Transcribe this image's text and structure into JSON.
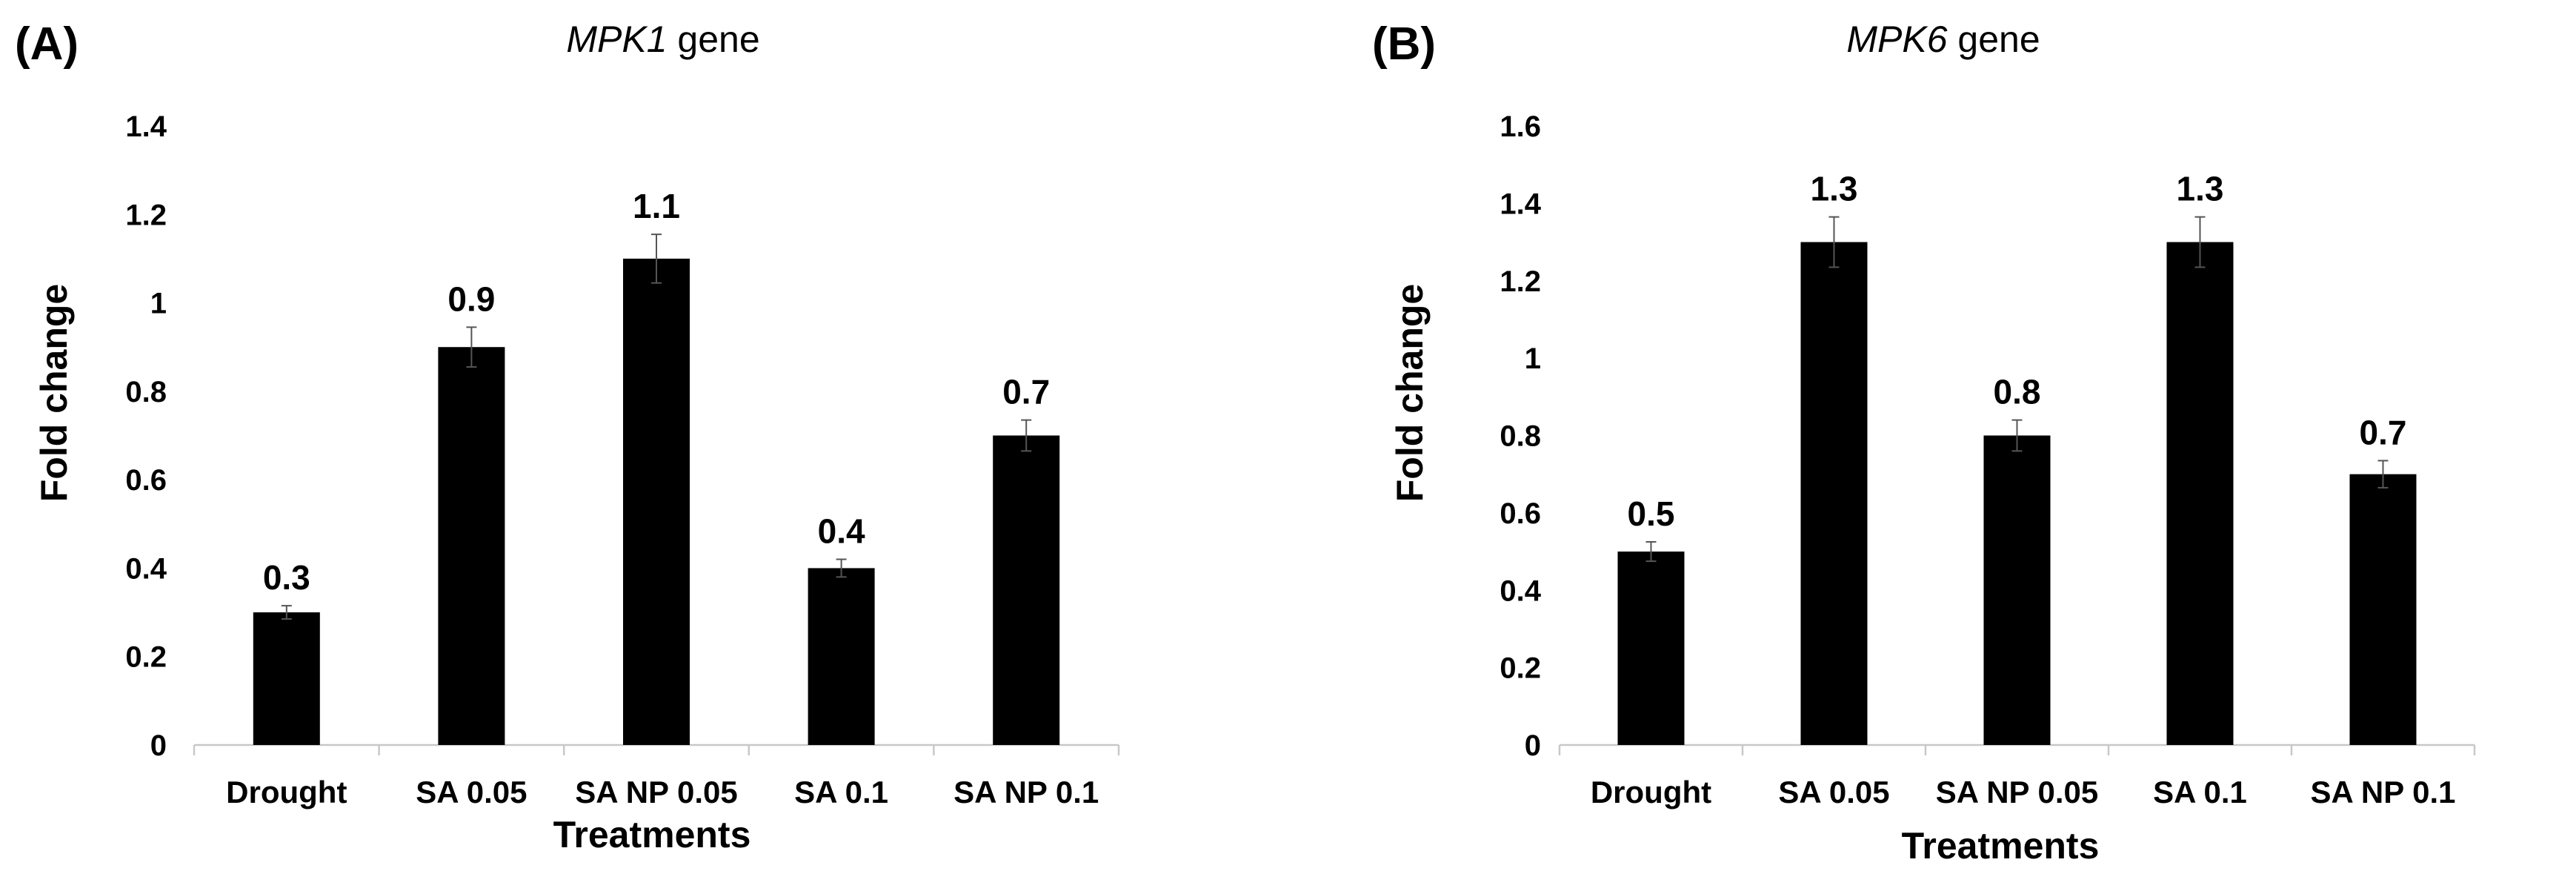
{
  "chart_data": [
    {
      "type": "bar",
      "panel_label": "(A)",
      "title_gene": "MPK1",
      "title_rest": " gene",
      "categories": [
        "Drought",
        "SA 0.05",
        "SA NP 0.05",
        "SA 0.1",
        "SA NP 0.1"
      ],
      "values": [
        0.3,
        0.9,
        1.1,
        0.4,
        0.7
      ],
      "errors": [
        0.015,
        0.045,
        0.055,
        0.02,
        0.035
      ],
      "data_labels": [
        "0.3",
        "0.9",
        "1.1",
        "0.4",
        "0.7"
      ],
      "xlabel": "Treatments",
      "ylabel": "Fold change",
      "ylim": [
        0,
        1.4
      ],
      "yticks": [
        "0",
        "0.2",
        "0.4",
        "0.6",
        "0.8",
        "1",
        "1.2",
        "1.4"
      ],
      "bar_color": "#000000",
      "grid": false
    },
    {
      "type": "bar",
      "panel_label": "(B)",
      "title_gene": "MPK6",
      "title_rest": " gene",
      "categories": [
        "Drought",
        "SA 0.05",
        "SA NP 0.05",
        "SA 0.1",
        "SA NP 0.1"
      ],
      "values": [
        0.5,
        1.3,
        0.8,
        1.3,
        0.7
      ],
      "errors": [
        0.025,
        0.065,
        0.04,
        0.065,
        0.035
      ],
      "data_labels": [
        "0.5",
        "1.3",
        "0.8",
        "1.3",
        "0.7"
      ],
      "xlabel": "Treatments",
      "ylabel": "Fold change",
      "ylim": [
        0,
        1.6
      ],
      "yticks": [
        "0",
        "0.2",
        "0.4",
        "0.6",
        "0.8",
        "1",
        "1.2",
        "1.4",
        "1.6"
      ],
      "bar_color": "#000000",
      "grid": false
    }
  ]
}
